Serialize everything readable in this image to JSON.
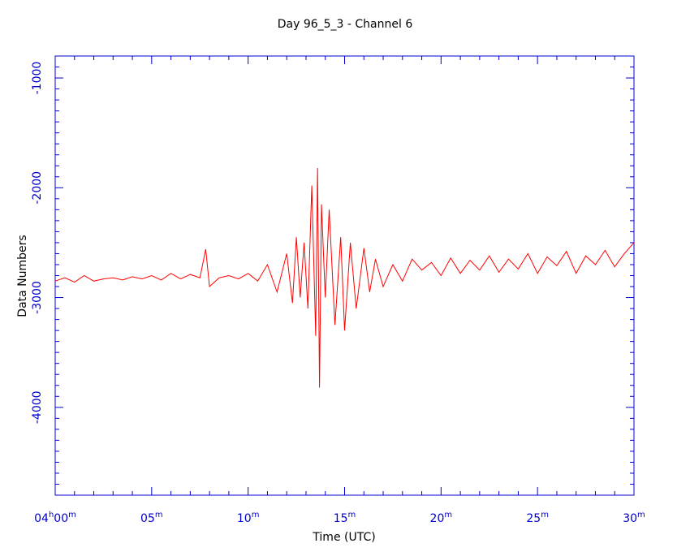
{
  "chart_data": {
    "type": "line",
    "title": "Day 96_5_3  - Channel 6",
    "xlabel": "Time (UTC)",
    "ylabel": "Data Numbers",
    "xlim": [
      0,
      30
    ],
    "ylim": [
      -4800,
      -800
    ],
    "x_unit": "minutes after 04h00m",
    "x_ticks": [
      {
        "value": 0,
        "main": "04",
        "sup1": "h",
        "mid": "00",
        "sup2": "m"
      },
      {
        "value": 5,
        "main": "05",
        "sup1": "m",
        "mid": "",
        "sup2": ""
      },
      {
        "value": 10,
        "main": "10",
        "sup1": "m",
        "mid": "",
        "sup2": ""
      },
      {
        "value": 15,
        "main": "15",
        "sup1": "m",
        "mid": "",
        "sup2": ""
      },
      {
        "value": 20,
        "main": "20",
        "sup1": "m",
        "mid": "",
        "sup2": ""
      },
      {
        "value": 25,
        "main": "25",
        "sup1": "m",
        "mid": "",
        "sup2": ""
      },
      {
        "value": 30,
        "main": "30",
        "sup1": "m",
        "mid": "",
        "sup2": ""
      }
    ],
    "y_ticks": [
      {
        "value": -1000,
        "label": "-1000"
      },
      {
        "value": -2000,
        "label": "-2000"
      },
      {
        "value": -3000,
        "label": "-3000"
      },
      {
        "value": -4000,
        "label": "-4000"
      }
    ],
    "grid": false,
    "legend": "none",
    "series": [
      {
        "color": "#ff0000",
        "x": [
          0,
          0.5,
          1,
          1.5,
          2,
          2.5,
          3,
          3.5,
          4,
          4.5,
          5,
          5.5,
          6,
          6.5,
          7,
          7.5,
          7.8,
          8,
          8.5,
          9,
          9.5,
          10,
          10.5,
          11,
          11.5,
          12,
          12.3,
          12.5,
          12.7,
          12.9,
          13.1,
          13.3,
          13.5,
          13.6,
          13.7,
          13.8,
          14,
          14.2,
          14.5,
          14.8,
          15,
          15.3,
          15.6,
          16,
          16.3,
          16.6,
          17,
          17.5,
          18,
          18.5,
          19,
          19.5,
          20,
          20.5,
          21,
          21.5,
          22,
          22.5,
          23,
          23.5,
          24,
          24.5,
          25,
          25.5,
          26,
          26.5,
          27,
          27.5,
          28,
          28.5,
          29,
          29.5,
          30
        ],
        "y": [
          -2850,
          -2820,
          -2860,
          -2800,
          -2850,
          -2830,
          -2820,
          -2840,
          -2810,
          -2830,
          -2800,
          -2840,
          -2780,
          -2830,
          -2790,
          -2820,
          -2560,
          -2900,
          -2820,
          -2800,
          -2830,
          -2780,
          -2850,
          -2700,
          -2950,
          -2600,
          -3050,
          -2450,
          -3000,
          -2500,
          -3100,
          -1980,
          -3350,
          -1820,
          -3820,
          -2150,
          -3000,
          -2200,
          -3250,
          -2450,
          -3300,
          -2500,
          -3100,
          -2550,
          -2950,
          -2650,
          -2900,
          -2700,
          -2850,
          -2650,
          -2750,
          -2680,
          -2800,
          -2640,
          -2780,
          -2660,
          -2750,
          -2620,
          -2770,
          -2650,
          -2740,
          -2600,
          -2780,
          -2630,
          -2710,
          -2580,
          -2780,
          -2620,
          -2700,
          -2570,
          -2720,
          -2600,
          -2500
        ]
      }
    ]
  }
}
